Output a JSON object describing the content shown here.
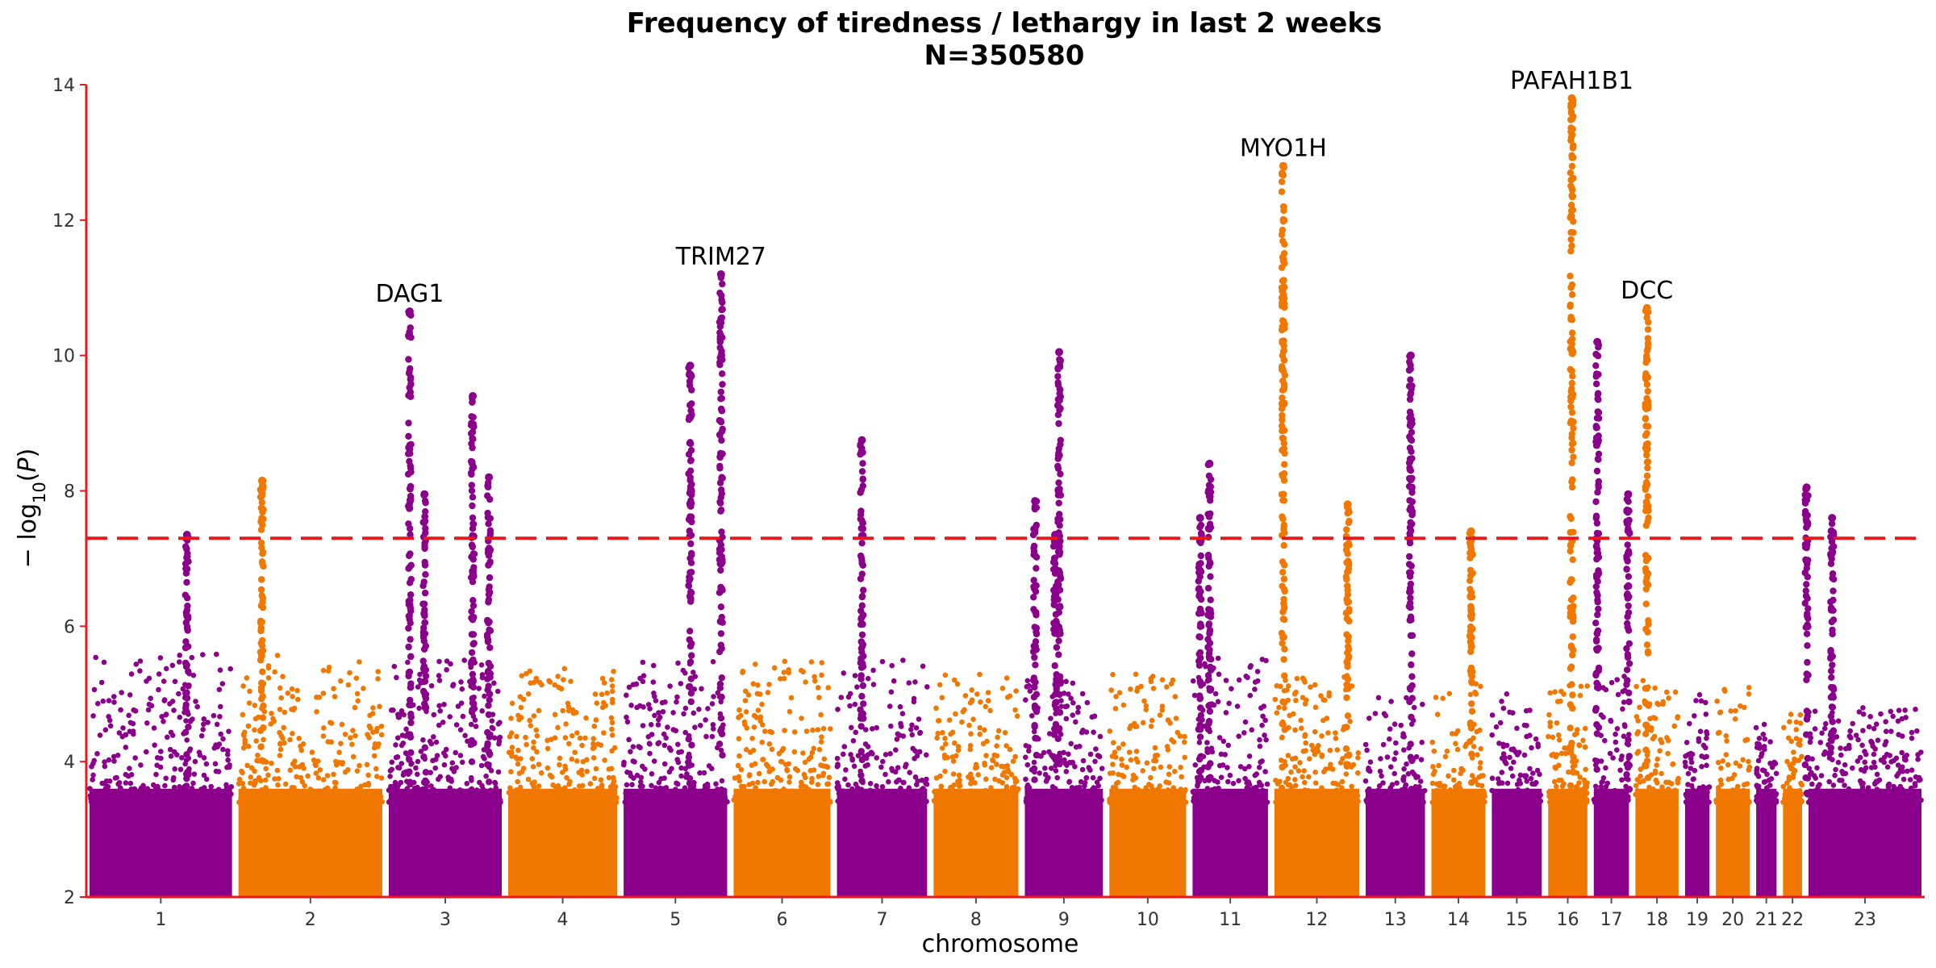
{
  "chart_data": {
    "type": "scatter",
    "subtype": "manhattan",
    "title": "Frequency of tiredness / lethargy in last 2 weeks",
    "subtitle": "N=350580",
    "xlabel": "chromosome",
    "ylabel": "−log10(P)",
    "ylim": [
      2,
      14
    ],
    "yticks": [
      "2",
      "4",
      "6",
      "8",
      "10",
      "12",
      "14"
    ],
    "threshold": 7.3,
    "threshold_color": "#e8191c",
    "colors": {
      "odd": "#8b008b",
      "even": "#f07800",
      "axis": "#e8191c"
    },
    "chromosomes": [
      {
        "label": "1",
        "start": 0.0,
        "end": 0.111,
        "color": "odd",
        "base": 5.6
      },
      {
        "label": "2",
        "start": 0.111,
        "end": 0.223,
        "color": "even",
        "base": 5.6
      },
      {
        "label": "3",
        "start": 0.223,
        "end": 0.312,
        "color": "odd",
        "base": 5.5
      },
      {
        "label": "4",
        "start": 0.312,
        "end": 0.398,
        "color": "even",
        "base": 5.4
      },
      {
        "label": "5",
        "start": 0.398,
        "end": 0.48,
        "color": "odd",
        "base": 5.5
      },
      {
        "label": "6",
        "start": 0.48,
        "end": 0.557,
        "color": "even",
        "base": 5.5
      },
      {
        "label": "7",
        "start": 0.557,
        "end": 0.629,
        "color": "odd",
        "base": 5.5
      },
      {
        "label": "8",
        "start": 0.629,
        "end": 0.697,
        "color": "even",
        "base": 5.3
      },
      {
        "label": "9",
        "start": 0.697,
        "end": 0.76,
        "color": "odd",
        "base": 5.2
      },
      {
        "label": "10",
        "start": 0.76,
        "end": 0.822,
        "color": "even",
        "base": 5.3
      },
      {
        "label": "11",
        "start": 0.822,
        "end": 0.883,
        "color": "odd",
        "base": 5.6
      },
      {
        "label": "12",
        "start": 0.883,
        "end": 0.951,
        "color": "even",
        "base": 5.3
      },
      {
        "label": "13",
        "start": 0.951,
        "end": 1.0,
        "color": "odd",
        "base": 5.0
      },
      {
        "label": "14",
        "start": 1.0,
        "end": 1.045,
        "color": "even",
        "base": 5.2
      },
      {
        "label": "15",
        "start": 1.045,
        "end": 1.087,
        "color": "odd",
        "base": 5.0
      },
      {
        "label": "16",
        "start": 1.087,
        "end": 1.121,
        "color": "even",
        "base": 5.2
      },
      {
        "label": "17",
        "start": 1.121,
        "end": 1.152,
        "color": "odd",
        "base": 5.3
      },
      {
        "label": "18",
        "start": 1.152,
        "end": 1.189,
        "color": "even",
        "base": 5.2
      },
      {
        "label": "19",
        "start": 1.189,
        "end": 1.212,
        "color": "odd",
        "base": 5.0
      },
      {
        "label": "20",
        "start": 1.212,
        "end": 1.242,
        "color": "even",
        "base": 5.1
      },
      {
        "label": "21",
        "start": 1.242,
        "end": 1.262,
        "color": "odd",
        "base": 4.6
      },
      {
        "label": "22",
        "start": 1.262,
        "end": 1.281,
        "color": "even",
        "base": 4.8
      },
      {
        "label": "23",
        "start": 1.281,
        "end": 1.37,
        "color": "odd",
        "base": 4.8
      }
    ],
    "peaks": [
      {
        "x": 0.075,
        "y": 7.35
      },
      {
        "x": 0.131,
        "y": 8.15
      },
      {
        "x": 0.241,
        "y": 10.65
      },
      {
        "x": 0.252,
        "y": 7.95
      },
      {
        "x": 0.288,
        "y": 9.4
      },
      {
        "x": 0.3,
        "y": 8.2
      },
      {
        "x": 0.45,
        "y": 9.85
      },
      {
        "x": 0.473,
        "y": 11.2
      },
      {
        "x": 0.578,
        "y": 8.75
      },
      {
        "x": 0.707,
        "y": 7.85
      },
      {
        "x": 0.722,
        "y": 7.35
      },
      {
        "x": 0.725,
        "y": 10.05
      },
      {
        "x": 0.83,
        "y": 7.6
      },
      {
        "x": 0.837,
        "y": 8.4
      },
      {
        "x": 0.892,
        "y": 12.8
      },
      {
        "x": 0.94,
        "y": 7.8
      },
      {
        "x": 0.987,
        "y": 10.0
      },
      {
        "x": 1.032,
        "y": 7.4
      },
      {
        "x": 1.107,
        "y": 13.8
      },
      {
        "x": 1.126,
        "y": 10.2
      },
      {
        "x": 1.149,
        "y": 7.95
      },
      {
        "x": 1.163,
        "y": 10.7
      },
      {
        "x": 1.282,
        "y": 8.05
      },
      {
        "x": 1.301,
        "y": 7.6
      }
    ],
    "annotations": [
      {
        "label": "DAG1",
        "x": 0.241,
        "y": 10.65
      },
      {
        "label": "TRIM27",
        "x": 0.473,
        "y": 11.2
      },
      {
        "label": "MYO1H",
        "x": 0.892,
        "y": 12.8
      },
      {
        "label": "PAFAH1B1",
        "x": 1.107,
        "y": 13.8
      },
      {
        "label": "DCC",
        "x": 1.163,
        "y": 10.7
      }
    ],
    "grid": false,
    "legend": "none"
  }
}
